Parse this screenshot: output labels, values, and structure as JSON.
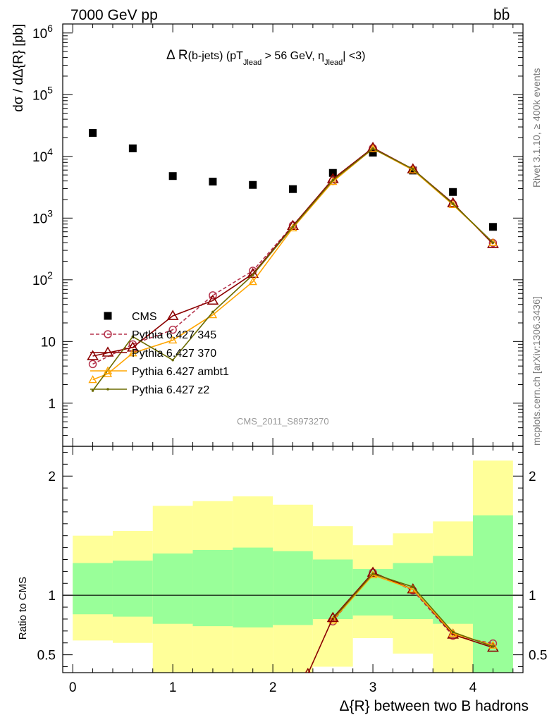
{
  "header": {
    "energy_label": "7000 GeV pp",
    "process_label": "bb̄",
    "rivet_label": "Rivet 3.1.10, ≥ 400k events",
    "source_label": "mcplots.cern.ch [arXiv:1306.3436]",
    "analysis_id": "CMS_2011_S8973270"
  },
  "plot_title": {
    "prefix": "Δ R",
    "jets": "(b-jets) (pT",
    "sub1": "Jlead",
    "mid": " >  56 GeV, η",
    "sub2": "Jlead",
    "suffix": "| <3)"
  },
  "colors": {
    "data": "#000000",
    "py345": "#b5344d",
    "py370": "#8b0000",
    "ambt1": "#ffa500",
    "z2": "#6b6b00",
    "band_inner": "#99ff99",
    "band_outer": "#ffff99"
  },
  "chart_data": [
    {
      "type": "scatter",
      "panel": "main",
      "ylabel": "dσ / dΔ{R} [pb]",
      "yscale": "log",
      "ylim": [
        0.2,
        1400000
      ],
      "xlim": [
        -0.1,
        4.5
      ],
      "x_ticks": [
        0,
        1,
        2,
        3,
        4
      ],
      "y_tick_labels": [
        "1",
        "10",
        "10^2",
        "10^3",
        "10^4",
        "10^5",
        "10^6"
      ],
      "legend_position": "lower-left",
      "series": [
        {
          "name": "CMS",
          "style": "data",
          "x": [
            0.2,
            0.6,
            1.0,
            1.4,
            1.8,
            2.2,
            2.6,
            3.0,
            3.4,
            3.8,
            4.2
          ],
          "y": [
            24000,
            13500,
            4800,
            3900,
            3450,
            2950,
            5400,
            11500,
            5900,
            2650,
            720
          ]
        },
        {
          "name": "Pythia 6.427 345",
          "style": "py345",
          "x": [
            0.2,
            0.6,
            1.0,
            1.4,
            1.8,
            2.2,
            2.6,
            3.0,
            3.4,
            3.8,
            4.2
          ],
          "y": [
            4.3,
            9.0,
            15.5,
            56,
            140,
            760,
            4000,
            13600,
            6100,
            1700,
            395
          ]
        },
        {
          "name": "Pythia 6.427 370",
          "style": "py370",
          "x": [
            0.2,
            0.6,
            1.0,
            1.4,
            1.8,
            2.2,
            2.6,
            3.0,
            3.4,
            3.8,
            4.2
          ],
          "y": [
            5.8,
            8.0,
            26,
            46,
            125,
            750,
            4300,
            13800,
            6200,
            1750,
            380
          ]
        },
        {
          "name": "Pythia 6.427 ambt1",
          "style": "ambt1",
          "x": [
            0.2,
            0.35,
            0.6,
            1.0,
            1.4,
            1.8,
            2.2,
            2.6,
            3.0,
            3.4,
            3.8,
            4.2
          ],
          "y": [
            2.4,
            3.0,
            6.5,
            10.5,
            27,
            93,
            690,
            3900,
            13300,
            6000,
            1650,
            400
          ]
        },
        {
          "name": "Pythia 6.427 z2",
          "style": "z2",
          "x": [
            0.2,
            0.6,
            1.0,
            1.4,
            1.8,
            2.2,
            2.6,
            3.0,
            3.4,
            3.8,
            4.2
          ],
          "y": [
            1.6,
            12,
            5.0,
            30,
            120,
            720,
            4100,
            13400,
            6200,
            1700,
            400
          ]
        }
      ]
    },
    {
      "type": "scatter",
      "panel": "ratio",
      "ylabel": "Ratio to CMS",
      "xlabel": "Δ{R} between two B hadrons",
      "ylim": [
        0.35,
        2.25
      ],
      "y_ticks": [
        0.5,
        1,
        2
      ],
      "x_ticks": [
        0,
        1,
        2,
        3,
        4
      ],
      "bands": {
        "edges": [
          0.0,
          0.4,
          0.8,
          1.2,
          1.6,
          2.0,
          2.4,
          2.8,
          3.2,
          3.6,
          4.0,
          4.4
        ],
        "inner_lo": [
          0.84,
          0.82,
          0.76,
          0.74,
          0.73,
          0.75,
          0.8,
          0.83,
          0.8,
          0.76,
          0.35
        ],
        "inner_hi": [
          1.27,
          1.29,
          1.35,
          1.38,
          1.4,
          1.37,
          1.3,
          1.22,
          1.27,
          1.33,
          1.67
        ],
        "outer_lo": [
          0.62,
          0.6,
          0.35,
          0.35,
          0.35,
          0.35,
          0.4,
          0.64,
          0.51,
          0.35,
          0.35
        ],
        "outer_hi": [
          1.5,
          1.54,
          1.75,
          1.79,
          1.83,
          1.76,
          1.58,
          1.42,
          1.52,
          1.62,
          2.13
        ]
      },
      "series": [
        {
          "name": "Pythia 6.427 345",
          "style": "py345",
          "x": [
            2.6,
            3.0,
            3.4,
            3.8,
            4.2
          ],
          "y": [
            0.78,
            1.19,
            1.04,
            0.66,
            0.595
          ]
        },
        {
          "name": "Pythia 6.427 370",
          "style": "py370",
          "x": [
            2.6,
            3.0,
            3.4,
            3.8,
            4.2
          ],
          "y": [
            0.81,
            1.19,
            1.05,
            0.67,
            0.56
          ]
        },
        {
          "name": "Pythia 6.427 ambt1",
          "style": "ambt1",
          "x": [
            2.6,
            3.0,
            3.4,
            3.8,
            4.2
          ],
          "y": [
            0.79,
            1.17,
            1.05,
            0.68,
            0.58
          ]
        },
        {
          "name": "Pythia 6.427 z2",
          "style": "z2",
          "x": [
            2.6,
            3.0,
            3.4,
            3.8,
            4.2
          ],
          "y": [
            0.8,
            1.18,
            1.07,
            0.69,
            0.57
          ]
        },
        {
          "name": "Pythia 6.427 370 (left)",
          "style": "py370",
          "x": [
            2.35,
            2.6
          ],
          "y": [
            0.34,
            0.81
          ]
        }
      ]
    }
  ]
}
